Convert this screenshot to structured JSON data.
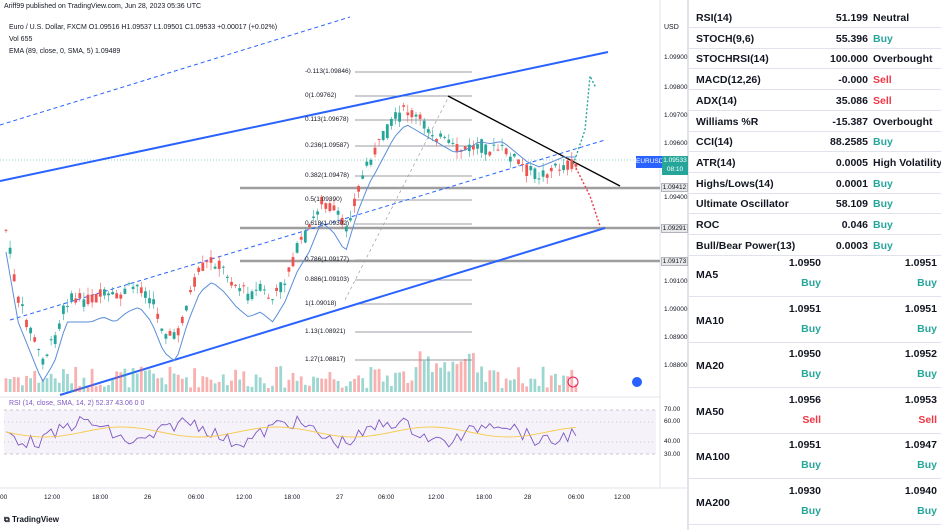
{
  "header": {
    "published": "Ariff99 published on TradingView.com, Jun 28, 2023 05:36 UTC",
    "symbol_line": "Euro / U.S. Dollar, FXCM  O1.09516  H1.09537  L1.09501  C1.09533  +0.00017 (+0.02%)",
    "vol": "Vol  655",
    "ema": "EMA (89, close, 0, SMA, 5)  1.09489",
    "currency": "USD"
  },
  "price_axis": [
    "1.09900",
    "1.09800",
    "1.09700",
    "1.09600",
    "1.09400",
    "1.09100",
    "1.09000",
    "1.08900",
    "1.08800"
  ],
  "price_tags": [
    "1.09412",
    "1.09291",
    "1.09173"
  ],
  "current_price": {
    "symbol": "EURUSD",
    "price": "1.09533",
    "countdown": "08:10"
  },
  "fib_levels": [
    {
      "label": "-0.113(1.09846)"
    },
    {
      "label": "0(1.09762)"
    },
    {
      "label": "0.113(1.09678)"
    },
    {
      "label": "0.236(1.09587)"
    },
    {
      "label": "0.382(1.09478)"
    },
    {
      "label": "0.5(1.09390)"
    },
    {
      "label": "0.618(1.09302)"
    },
    {
      "label": "0.786(1.09177)"
    },
    {
      "label": "0.886(1.09103)"
    },
    {
      "label": "1(1.09018)"
    },
    {
      "label": "1.13(1.08921)"
    },
    {
      "label": "1.27(1.08817)"
    }
  ],
  "rsi": {
    "label": "RSI (14, close, SMA, 14, 2)  52.37  43.06  0  0",
    "levels": [
      "70.00",
      "60.00",
      "40.00",
      "30.00"
    ]
  },
  "time_axis": [
    "00",
    "12:00",
    "18:00",
    "26",
    "06:00",
    "12:00",
    "18:00",
    "27",
    "06:00",
    "12:00",
    "18:00",
    "28",
    "06:00",
    "12:00"
  ],
  "footer": "TradingView",
  "indicators": [
    {
      "name": "RSI(14)",
      "value": "51.199",
      "signal": "Neutral",
      "kind": "neu"
    },
    {
      "name": "STOCH(9,6)",
      "value": "55.396",
      "signal": "Buy",
      "kind": "buy"
    },
    {
      "name": "STOCHRSI(14)",
      "value": "100.000",
      "signal": "Overbought",
      "kind": "neu"
    },
    {
      "name": "MACD(12,26)",
      "value": "-0.000",
      "signal": "Sell",
      "kind": "sell"
    },
    {
      "name": "ADX(14)",
      "value": "35.086",
      "signal": "Sell",
      "kind": "sell"
    },
    {
      "name": "Williams %R",
      "value": "-15.387",
      "signal": "Overbought",
      "kind": "neu"
    },
    {
      "name": "CCI(14)",
      "value": "88.2585",
      "signal": "Buy",
      "kind": "buy"
    },
    {
      "name": "ATR(14)",
      "value": "0.0005",
      "signal": "High Volatility",
      "kind": "neu"
    },
    {
      "name": "Highs/Lows(14)",
      "value": "0.0001",
      "signal": "Buy",
      "kind": "buy"
    },
    {
      "name": "Ultimate Oscillator",
      "value": "58.109",
      "signal": "Buy",
      "kind": "buy"
    },
    {
      "name": "ROC",
      "value": "0.046",
      "signal": "Buy",
      "kind": "buy"
    },
    {
      "name": "Bull/Bear Power(13)",
      "value": "0.0003",
      "signal": "Buy",
      "kind": "buy"
    }
  ],
  "moving_averages": [
    {
      "name": "MA5",
      "v1": "1.0950",
      "s1": "Buy",
      "k1": "buy",
      "v2": "1.0951",
      "s2": "Buy",
      "k2": "buy"
    },
    {
      "name": "MA10",
      "v1": "1.0951",
      "s1": "Buy",
      "k1": "buy",
      "v2": "1.0951",
      "s2": "Buy",
      "k2": "buy"
    },
    {
      "name": "MA20",
      "v1": "1.0950",
      "s1": "Buy",
      "k1": "buy",
      "v2": "1.0952",
      "s2": "Buy",
      "k2": "buy"
    },
    {
      "name": "MA50",
      "v1": "1.0956",
      "s1": "Sell",
      "k1": "sell",
      "v2": "1.0953",
      "s2": "Sell",
      "k2": "sell"
    },
    {
      "name": "MA100",
      "v1": "1.0951",
      "s1": "Buy",
      "k1": "buy",
      "v2": "1.0947",
      "s2": "Buy",
      "k2": "buy"
    },
    {
      "name": "MA200",
      "v1": "1.0930",
      "s1": "Buy",
      "k1": "buy",
      "v2": "1.0940",
      "s2": "Buy",
      "k2": "buy"
    }
  ],
  "colors": {
    "buy": "#26a69a",
    "sell": "#f23645",
    "channel": "#2962ff",
    "ema": "#5b8dd9",
    "rsi": "#7e57c2"
  }
}
